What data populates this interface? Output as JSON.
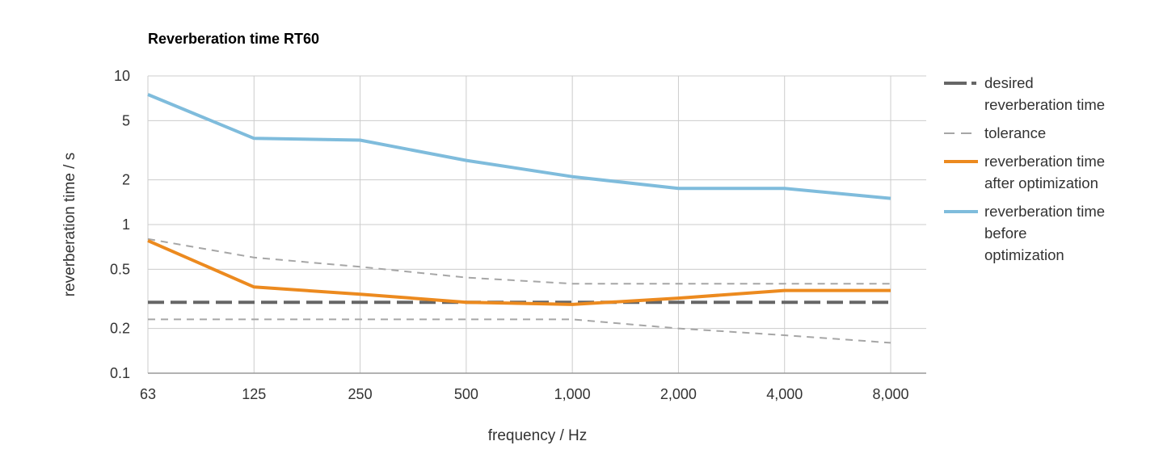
{
  "chart_data": {
    "type": "line",
    "title": "Reverberation time RT60",
    "xlabel": "frequency / Hz",
    "ylabel": "reverberation time / s",
    "y_scale": "log",
    "ylim": [
      0.1,
      10
    ],
    "grid": true,
    "legend_position": "right",
    "categories": [
      "63",
      "125",
      "250",
      "500",
      "1,000",
      "2,000",
      "4,000",
      "8,000"
    ],
    "y_ticks": [
      0.1,
      0.2,
      0.5,
      1,
      2,
      5,
      10
    ],
    "y_tick_labels": [
      "0.1",
      "0.2",
      "0.5",
      "1",
      "2",
      "5",
      "10"
    ],
    "series": [
      {
        "name": "desired reverberation time",
        "legend_lines": [
          "desired",
          "reverberation time"
        ],
        "style": "dash-thick",
        "color": "#666666",
        "values": [
          0.3,
          0.3,
          0.3,
          0.3,
          0.3,
          0.3,
          0.3,
          0.3
        ]
      },
      {
        "name": "tolerance",
        "legend_lines": [
          "tolerance"
        ],
        "style": "dash-thin",
        "color": "#a6a6a6",
        "values": [
          0.8,
          0.6,
          0.52,
          0.44,
          0.4,
          0.4,
          0.4,
          0.4
        ]
      },
      {
        "name": "tolerance",
        "legend_lines": [],
        "style": "dash-thin",
        "color": "#a6a6a6",
        "values": [
          0.23,
          0.23,
          0.23,
          0.23,
          0.23,
          0.2,
          0.18,
          0.16
        ]
      },
      {
        "name": "reverberation time after optimization",
        "legend_lines": [
          "reverberation time",
          "after optimization"
        ],
        "style": "solid",
        "color": "#ec8a1f",
        "values": [
          0.78,
          0.38,
          0.34,
          0.3,
          0.29,
          0.32,
          0.36,
          0.36
        ]
      },
      {
        "name": "reverberation time before optimization",
        "legend_lines": [
          "reverberation time",
          "before",
          "optimization"
        ],
        "style": "solid",
        "color": "#7fbcdc",
        "values": [
          7.5,
          3.8,
          3.7,
          2.7,
          2.1,
          1.75,
          1.75,
          1.5
        ]
      }
    ]
  }
}
